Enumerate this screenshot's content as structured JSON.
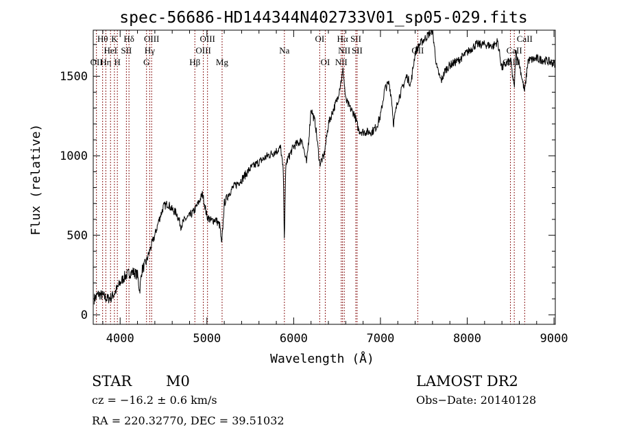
{
  "chart_data": {
    "type": "line",
    "title": "spec-56686-HD144344N402733V01_sp05-029.fits",
    "xlabel": "Wavelength (Å)",
    "ylabel": "Flux (relative)",
    "xlim": [
      3690,
      9015
    ],
    "ylim": [
      -60,
      1790
    ],
    "xticks": [
      4000,
      5000,
      6000,
      7000,
      8000,
      9000
    ],
    "yticks": [
      0,
      500,
      1000,
      1500
    ],
    "grid": false,
    "line_color": "#000000",
    "marker_color": "#8b1a1a",
    "series": [
      {
        "name": "spectrum",
        "x": [
          3700,
          3750,
          3800,
          3850,
          3900,
          3950,
          4000,
          4050,
          4100,
          4150,
          4200,
          4225,
          4250,
          4300,
          4350,
          4400,
          4450,
          4500,
          4550,
          4600,
          4650,
          4700,
          4750,
          4800,
          4850,
          4900,
          4950,
          5000,
          5050,
          5100,
          5150,
          5170,
          5200,
          5250,
          5300,
          5400,
          5500,
          5600,
          5700,
          5800,
          5850,
          5880,
          5893,
          5910,
          5950,
          6000,
          6050,
          6100,
          6130,
          6150,
          6180,
          6200,
          6250,
          6300,
          6350,
          6400,
          6450,
          6500,
          6550,
          6570,
          6600,
          6650,
          6700,
          6750,
          6800,
          6900,
          6950,
          7000,
          7050,
          7100,
          7130,
          7150,
          7200,
          7250,
          7300,
          7350,
          7400,
          7450,
          7500,
          7550,
          7600,
          7650,
          7700,
          7750,
          7800,
          7900,
          8000,
          8100,
          8200,
          8300,
          8350,
          8400,
          8450,
          8500,
          8542,
          8560,
          8600,
          8662,
          8700,
          8800,
          8900,
          9000
        ],
        "y": [
          100,
          130,
          120,
          100,
          110,
          150,
          200,
          240,
          260,
          270,
          250,
          150,
          280,
          330,
          420,
          500,
          600,
          680,
          700,
          660,
          640,
          560,
          600,
          620,
          650,
          700,
          760,
          620,
          590,
          600,
          560,
          430,
          700,
          760,
          800,
          850,
          920,
          960,
          1000,
          1030,
          1050,
          900,
          470,
          950,
          1000,
          1060,
          1080,
          1100,
          1000,
          950,
          1150,
          1300,
          1200,
          950,
          1000,
          1200,
          1280,
          1350,
          1480,
          1540,
          1350,
          1300,
          1260,
          1160,
          1150,
          1150,
          1180,
          1250,
          1420,
          1460,
          1350,
          1200,
          1350,
          1420,
          1500,
          1450,
          1650,
          1700,
          1730,
          1760,
          1790,
          1550,
          1470,
          1540,
          1570,
          1600,
          1650,
          1700,
          1700,
          1690,
          1720,
          1550,
          1580,
          1600,
          1420,
          1650,
          1580,
          1400,
          1600,
          1610,
          1600,
          1580
        ]
      }
    ],
    "lines": [
      {
        "label": "OII",
        "wave": 3727,
        "row": 3
      },
      {
        "label": "Hθ",
        "wave": 3798,
        "row": 1
      },
      {
        "label": "Hη",
        "wave": 3835,
        "row": 3
      },
      {
        "label": "HeI",
        "wave": 3889,
        "row": 2
      },
      {
        "label": "K",
        "wave": 3934,
        "row": 1
      },
      {
        "label": "H",
        "wave": 3968,
        "row": 3
      },
      {
        "label": "SII",
        "wave": 4072,
        "row": 2
      },
      {
        "label": "Hδ",
        "wave": 4102,
        "row": 1
      },
      {
        "label": "G",
        "wave": 4304,
        "row": 3
      },
      {
        "label": "Hγ",
        "wave": 4340,
        "row": 2
      },
      {
        "label": "OIII",
        "wave": 4363,
        "row": 1
      },
      {
        "label": "Hβ",
        "wave": 4861,
        "row": 3
      },
      {
        "label": "OIII",
        "wave": 4959,
        "row": 2
      },
      {
        "label": "OIII",
        "wave": 5007,
        "row": 1
      },
      {
        "label": "Mg",
        "wave": 5175,
        "row": 3
      },
      {
        "label": "Na",
        "wave": 5893,
        "row": 2
      },
      {
        "label": "OI",
        "wave": 6300,
        "row": 1
      },
      {
        "label": "OI",
        "wave": 6364,
        "row": 3
      },
      {
        "label": "NII",
        "wave": 6548,
        "row": 3
      },
      {
        "label": "Hα",
        "wave": 6563,
        "row": 1
      },
      {
        "label": "NII",
        "wave": 6583,
        "row": 2
      },
      {
        "label": "SII",
        "wave": 6716,
        "row": 1
      },
      {
        "label": "SII",
        "wave": 6731,
        "row": 2
      },
      {
        "label": "OII",
        "wave": 7430,
        "row": 2
      },
      {
        "label": "CaII",
        "wave": 8498,
        "row": 3
      },
      {
        "label": "CaII",
        "wave": 8542,
        "row": 2
      },
      {
        "label": "CaII",
        "wave": 8662,
        "row": 1
      }
    ]
  },
  "info": {
    "object_class": "STAR",
    "subclass": "M0",
    "survey": "LAMOST DR2",
    "cz": "cz = −16.2 ± 0.6 km/s",
    "obs_date": "Obs−Date: 20140128",
    "coords": "RA = 220.32770, DEC =  39.51032"
  }
}
